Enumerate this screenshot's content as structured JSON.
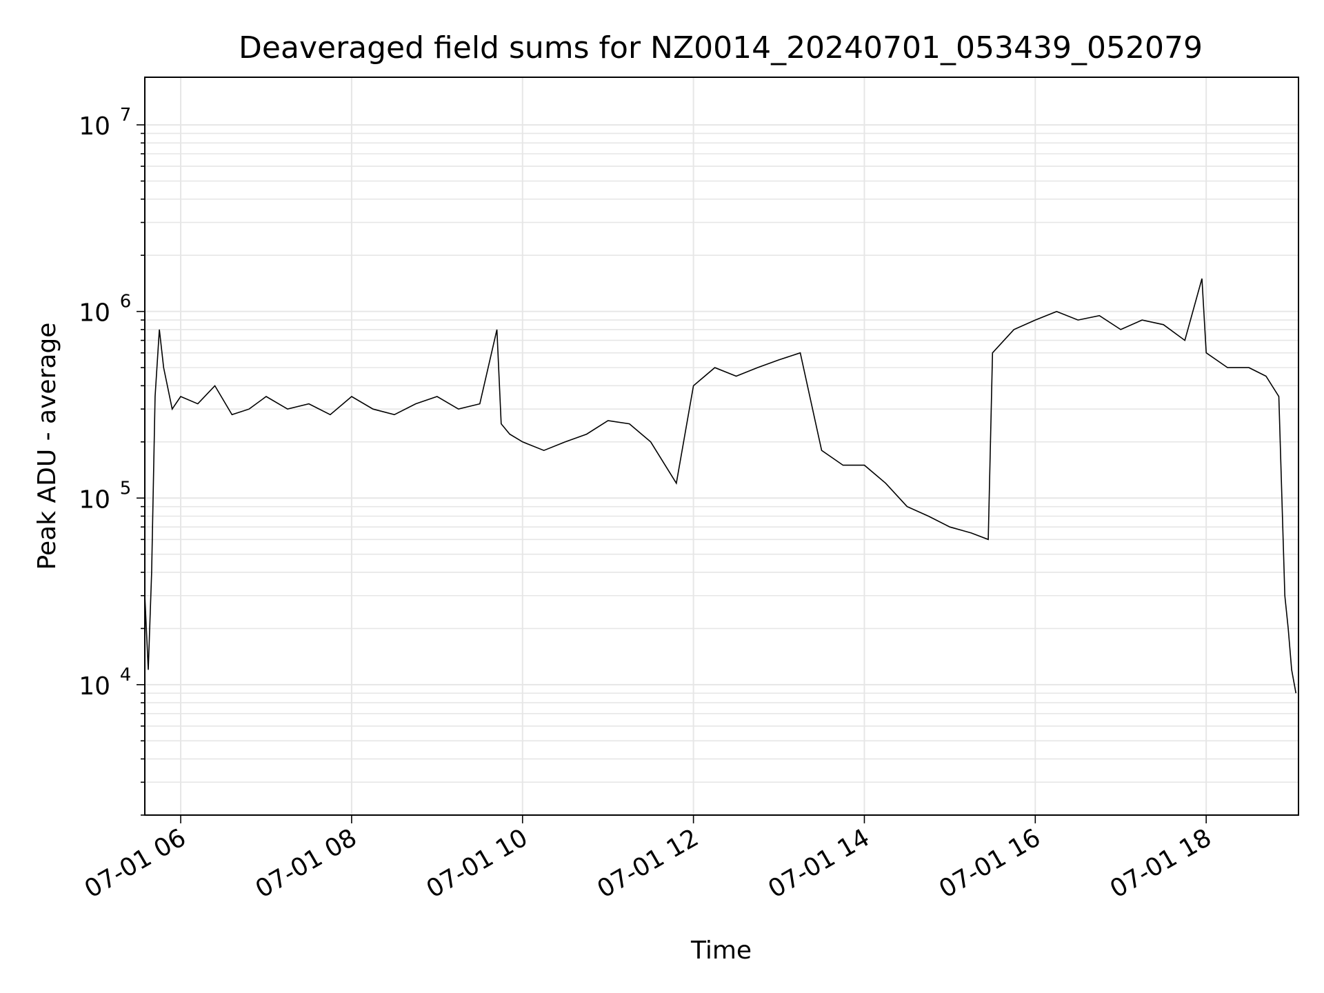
{
  "chart_data": {
    "type": "line",
    "title": "Deaveraged field sums for NZ0014_20240701_053439_052079",
    "xlabel": "Time",
    "ylabel": "Peak ADU - average",
    "x_ticks": [
      "07-01 06",
      "07-01 08",
      "07-01 10",
      "07-01 12",
      "07-01 14",
      "07-01 16",
      "07-01 18"
    ],
    "y_ticks": [
      {
        "value": 10000,
        "base": "10",
        "exp": "4"
      },
      {
        "value": 100000,
        "base": "10",
        "exp": "5"
      },
      {
        "value": 1000000,
        "base": "10",
        "exp": "6"
      },
      {
        "value": 10000000,
        "base": "10",
        "exp": "7"
      }
    ],
    "x_range_hours": [
      5.58,
      19.08
    ],
    "y_scale": "log",
    "ylim": [
      2000,
      18000000
    ],
    "grid": true,
    "line_color": "#000000",
    "series": [
      {
        "x_hours": [
          5.58,
          5.62,
          5.66,
          5.7,
          5.75,
          5.8,
          5.9,
          6.0,
          6.2,
          6.4,
          6.6,
          6.8,
          7.0,
          7.25,
          7.5,
          7.75,
          8.0,
          8.25,
          8.5,
          8.75,
          9.0,
          9.25,
          9.5,
          9.7,
          9.75,
          9.85,
          10.0,
          10.25,
          10.5,
          10.75,
          11.0,
          11.25,
          11.5,
          11.8,
          12.0,
          12.25,
          12.5,
          12.75,
          13.0,
          13.25,
          13.5,
          13.75,
          14.0,
          14.25,
          14.5,
          14.75,
          15.0,
          15.25,
          15.45,
          15.5,
          15.75,
          16.0,
          16.25,
          16.5,
          16.75,
          17.0,
          17.25,
          17.5,
          17.75,
          17.95,
          18.0,
          18.25,
          18.5,
          18.7,
          18.85,
          18.92,
          18.96,
          19.0,
          19.05
        ],
        "y_values": [
          30000,
          12000,
          40000,
          350000,
          800000,
          500000,
          300000,
          350000,
          320000,
          400000,
          280000,
          300000,
          350000,
          300000,
          320000,
          280000,
          350000,
          300000,
          280000,
          320000,
          350000,
          300000,
          320000,
          800000,
          250000,
          220000,
          200000,
          180000,
          200000,
          220000,
          260000,
          250000,
          200000,
          120000,
          400000,
          500000,
          450000,
          500000,
          550000,
          600000,
          180000,
          150000,
          150000,
          120000,
          90000,
          80000,
          70000,
          65000,
          60000,
          600000,
          800000,
          900000,
          1000000,
          900000,
          950000,
          800000,
          900000,
          850000,
          700000,
          1500000,
          600000,
          500000,
          500000,
          450000,
          350000,
          30000,
          20000,
          12000,
          9000
        ]
      }
    ]
  }
}
